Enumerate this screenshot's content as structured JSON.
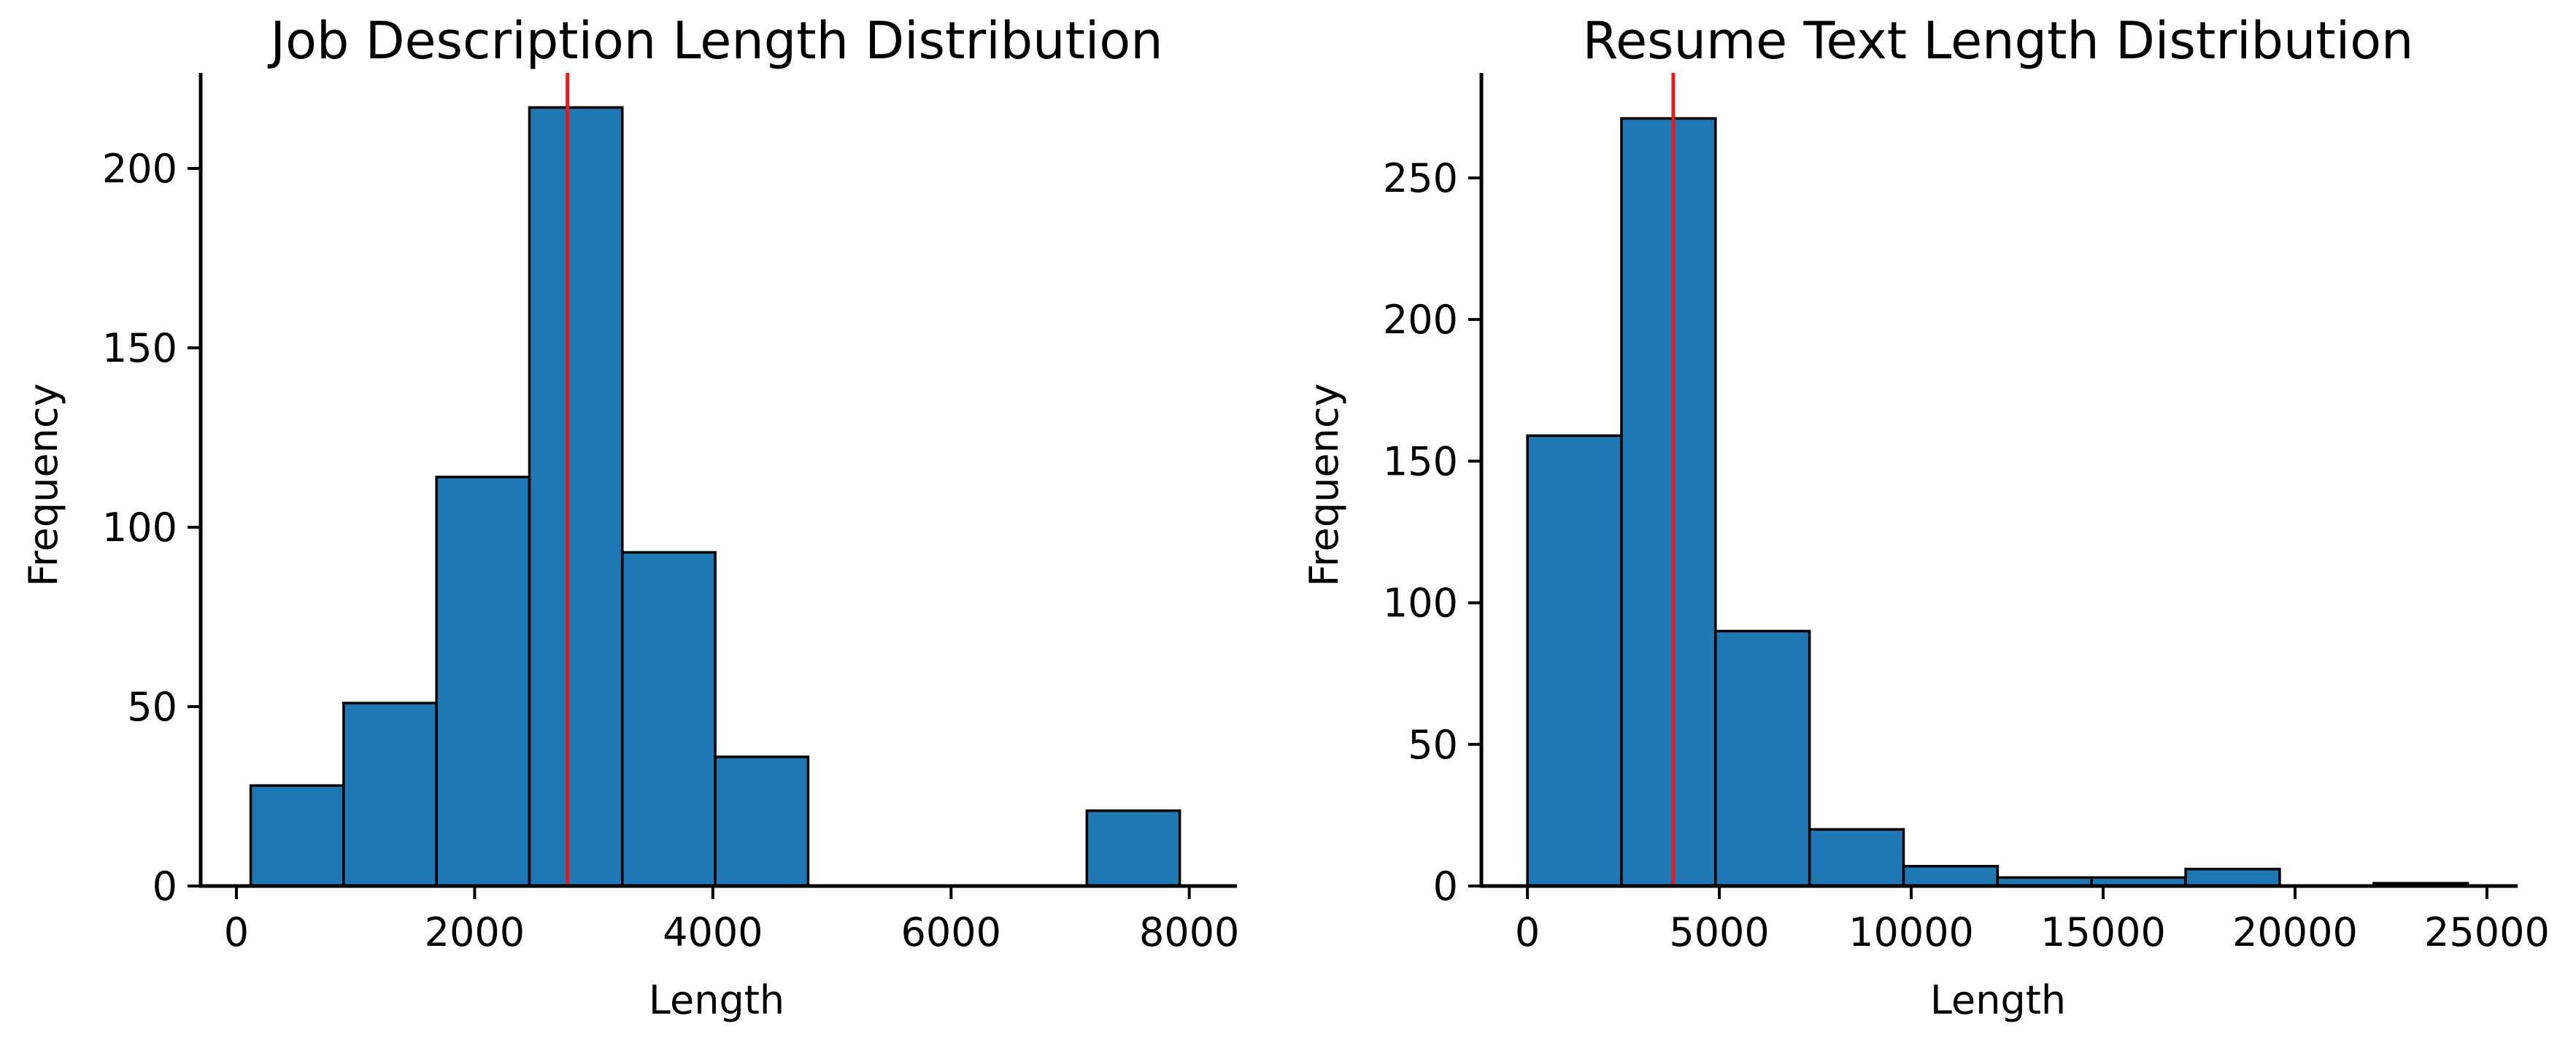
{
  "chart_data": [
    {
      "type": "bar",
      "title": "Job Description Length Distribution",
      "xlabel": "Length",
      "ylabel": "Frequency",
      "xlim": [
        -300,
        8400
      ],
      "ylim": [
        0,
        225
      ],
      "xticks": [
        0,
        2000,
        4000,
        6000,
        8000
      ],
      "xtick_labels": [
        "0",
        "2000",
        "4000",
        "6000",
        "8000"
      ],
      "yticks": [
        0,
        50,
        100,
        150,
        200
      ],
      "ytick_labels": [
        "0",
        "50",
        "100",
        "150",
        "200"
      ],
      "bins": [
        {
          "x0": 120,
          "x1": 900,
          "value": 28
        },
        {
          "x0": 900,
          "x1": 1680,
          "value": 51
        },
        {
          "x0": 1680,
          "x1": 2460,
          "value": 114
        },
        {
          "x0": 2460,
          "x1": 3240,
          "value": 217
        },
        {
          "x0": 3240,
          "x1": 4020,
          "value": 93
        },
        {
          "x0": 4020,
          "x1": 4800,
          "value": 36
        },
        {
          "x0": 4800,
          "x1": 5580,
          "value": 0
        },
        {
          "x0": 5580,
          "x1": 6360,
          "value": 0
        },
        {
          "x0": 6360,
          "x1": 7140,
          "value": 0
        },
        {
          "x0": 7140,
          "x1": 7920,
          "value": 21
        }
      ],
      "vline": 2780,
      "colors": {
        "bar": "#1f77b4",
        "edge": "#000000",
        "vline": "#e41a1c"
      },
      "grid": false
    },
    {
      "type": "bar",
      "title": "Resume Text Length Distribution",
      "xlabel": "Length",
      "ylabel": "Frequency",
      "xlim": [
        -1200,
        25800
      ],
      "ylim": [
        0,
        285
      ],
      "xticks": [
        0,
        5000,
        10000,
        15000,
        20000,
        25000
      ],
      "xtick_labels": [
        "0",
        "5000",
        "10000",
        "15000",
        "20000",
        "25000"
      ],
      "yticks": [
        0,
        50,
        100,
        150,
        200,
        250
      ],
      "ytick_labels": [
        "0",
        "50",
        "100",
        "150",
        "200",
        "250"
      ],
      "bins": [
        {
          "x0": 0,
          "x1": 2450,
          "value": 159
        },
        {
          "x0": 2450,
          "x1": 4900,
          "value": 271
        },
        {
          "x0": 4900,
          "x1": 7350,
          "value": 90
        },
        {
          "x0": 7350,
          "x1": 9800,
          "value": 20
        },
        {
          "x0": 9800,
          "x1": 12250,
          "value": 7
        },
        {
          "x0": 12250,
          "x1": 14700,
          "value": 3
        },
        {
          "x0": 14700,
          "x1": 17150,
          "value": 3
        },
        {
          "x0": 17150,
          "x1": 19600,
          "value": 6
        },
        {
          "x0": 19600,
          "x1": 22050,
          "value": 0
        },
        {
          "x0": 22050,
          "x1": 24500,
          "value": 1
        }
      ],
      "vline": 3800,
      "colors": {
        "bar": "#1f77b4",
        "edge": "#000000",
        "vline": "#e41a1c"
      },
      "grid": false
    }
  ]
}
